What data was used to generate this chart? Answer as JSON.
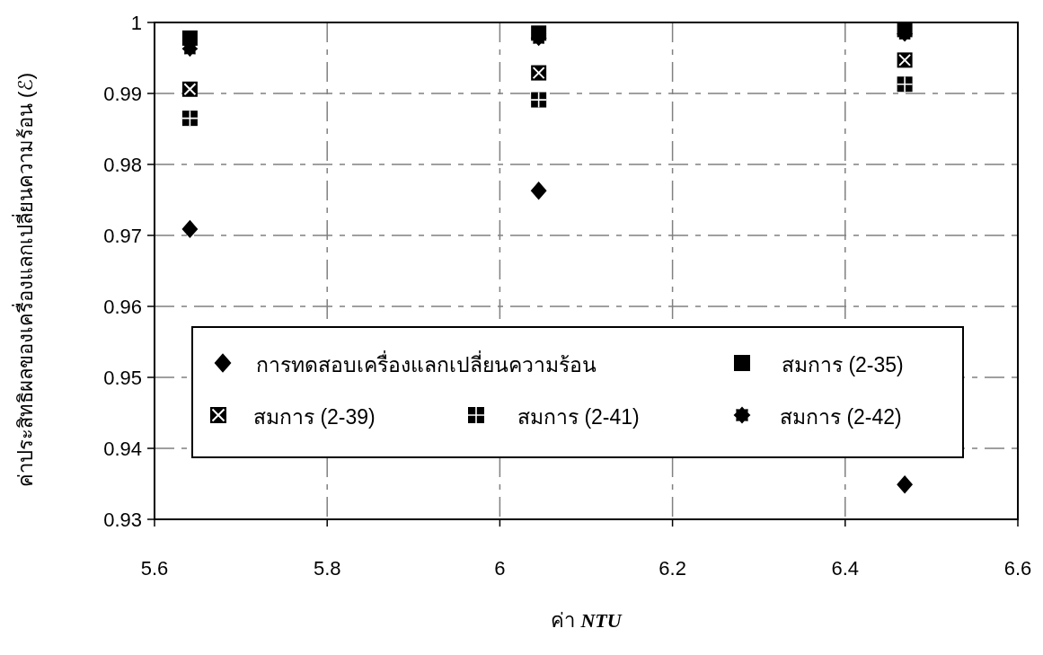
{
  "chart_data": {
    "type": "scatter",
    "xlabel": "ค่า *NTU*",
    "ylabel": "ค่าประสิทธิผลของเครื่องแลกเปลี่ยนความร้อน (ℰ)",
    "x": [
      5.641,
      6.045,
      6.469
    ],
    "series": [
      {
        "name": "การทดสอบเครื่องแลกเปลี่ยนความร้อน",
        "color": "#000000",
        "marker": "diamond",
        "values": [
          0.9709,
          0.9763,
          0.9349
        ]
      },
      {
        "name": "สมการ (2-35)",
        "color": "#000000",
        "marker": "square",
        "values": [
          0.9978,
          0.9985,
          0.999
        ]
      },
      {
        "name": "สมการ (2-39)",
        "color": "#000000",
        "marker": "square",
        "values": [
          0.9906,
          0.9929,
          0.9947
        ]
      },
      {
        "name": "สมการ (2-41)",
        "color": "#000000",
        "marker": "square",
        "values": [
          0.9865,
          0.9891,
          0.9913
        ]
      },
      {
        "name": "สมการ (2-42)",
        "color": "#000000",
        "marker": "star",
        "values": [
          0.9963,
          0.9978,
          0.9984
        ]
      }
    ],
    "xlim": [
      5.6,
      6.6
    ],
    "xticks": [
      5.6,
      5.8,
      6,
      6.2,
      6.4,
      6.6
    ],
    "ylim": [
      0.93,
      1
    ],
    "yticks": [
      0.93,
      0.94,
      0.95,
      0.96,
      0.97,
      0.98,
      0.99,
      1
    ],
    "grid": true,
    "legend": "bottom"
  }
}
